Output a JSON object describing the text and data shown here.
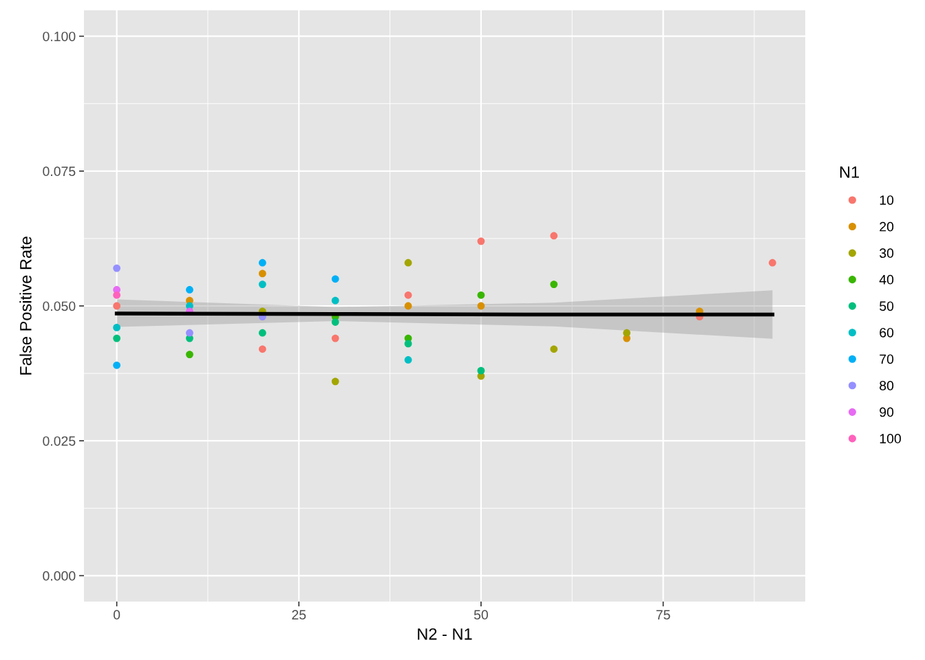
{
  "chart_data": {
    "type": "scatter",
    "xlabel": "N2 - N1",
    "ylabel": "False Positive Rate",
    "legend_title": "N1",
    "legend": "right",
    "grid": true,
    "xlim": [
      -4.5,
      94.5
    ],
    "ylim": [
      -0.0048,
      0.1048
    ],
    "xticks": [
      0,
      25,
      50,
      75
    ],
    "yticks": [
      {
        "value": 0,
        "label": "0.000"
      },
      {
        "value": 0.025,
        "label": "0.025"
      },
      {
        "value": 0.05,
        "label": "0.050"
      },
      {
        "value": 0.075,
        "label": "0.075"
      },
      {
        "value": 0.1,
        "label": "0.100"
      }
    ],
    "series": [
      {
        "name": "10",
        "color": "#f8766d",
        "marker": "circle",
        "x": [
          0,
          20,
          30,
          40,
          50,
          60,
          80,
          90
        ],
        "values": [
          0.05,
          0.042,
          0.044,
          0.052,
          0.062,
          0.063,
          0.048,
          0.058
        ]
      },
      {
        "name": "20",
        "color": "#d89000",
        "marker": "circle",
        "x": [
          10,
          20,
          40,
          50,
          70,
          80
        ],
        "values": [
          0.051,
          0.056,
          0.05,
          0.05,
          0.044,
          0.049
        ]
      },
      {
        "name": "30",
        "color": "#a3a500",
        "marker": "circle",
        "x": [
          20,
          30,
          40,
          50,
          60,
          70
        ],
        "values": [
          0.049,
          0.036,
          0.058,
          0.037,
          0.042,
          0.045
        ]
      },
      {
        "name": "40",
        "color": "#39b600",
        "marker": "circle",
        "x": [
          10,
          30,
          40,
          50,
          60
        ],
        "values": [
          0.041,
          0.048,
          0.044,
          0.052,
          0.054
        ]
      },
      {
        "name": "50",
        "color": "#00bf7d",
        "marker": "circle",
        "x": [
          0,
          10,
          20,
          30,
          40,
          50
        ],
        "values": [
          0.044,
          0.044,
          0.045,
          0.047,
          0.043,
          0.038
        ]
      },
      {
        "name": "60",
        "color": "#00bfc4",
        "marker": "circle",
        "x": [
          0,
          10,
          20,
          30,
          40
        ],
        "values": [
          0.046,
          0.05,
          0.054,
          0.051,
          0.04
        ]
      },
      {
        "name": "70",
        "color": "#00b0f6",
        "marker": "circle",
        "x": [
          0,
          10,
          20,
          30
        ],
        "values": [
          0.039,
          0.053,
          0.058,
          0.055
        ]
      },
      {
        "name": "80",
        "color": "#9590ff",
        "marker": "circle",
        "x": [
          0,
          10,
          20
        ],
        "values": [
          0.057,
          0.045,
          0.048
        ]
      },
      {
        "name": "90",
        "color": "#e76bf3",
        "marker": "circle",
        "x": [
          0,
          10
        ],
        "values": [
          0.053,
          0.049
        ]
      },
      {
        "name": "100",
        "color": "#ff62bc",
        "marker": "circle",
        "x": [
          0
        ],
        "values": [
          0.052
        ]
      },
      {
        "type": "line",
        "color": "#000000",
        "x": [
          0,
          30,
          60,
          90
        ],
        "values": [
          0.0486,
          0.0485,
          0.0484,
          0.0484
        ],
        "lower": [
          0.0461,
          0.0472,
          0.0462,
          0.0439
        ],
        "upper": [
          0.0512,
          0.0498,
          0.0506,
          0.0529
        ]
      }
    ]
  }
}
